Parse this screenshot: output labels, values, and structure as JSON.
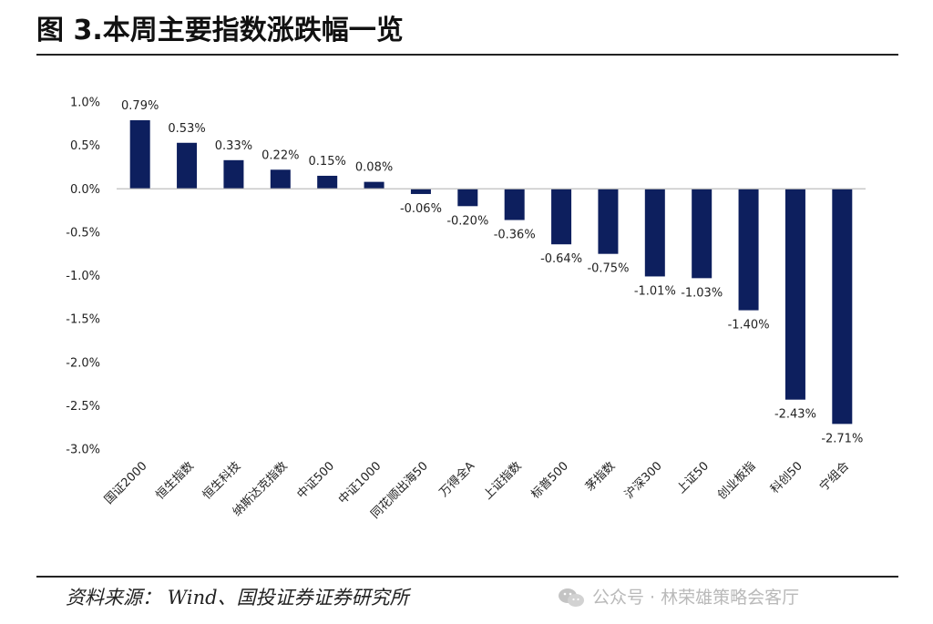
{
  "header": {
    "title": "图 3.本周主要指数涨跌幅一览"
  },
  "footer": {
    "source": "资料来源： Wind、国投证券证券研究所",
    "watermark": "公众号 · 林荣雄策略会客厅",
    "watermark_icon": "wechat-icon"
  },
  "chart_data": {
    "type": "bar",
    "categories": [
      "国证2000",
      "恒生指数",
      "恒生科技",
      "纳斯达克指数",
      "中证500",
      "中证1000",
      "同花顺出海50",
      "万得全A",
      "上证指数",
      "标普500",
      "茅指数",
      "沪深300",
      "上证50",
      "创业板指",
      "科创50",
      "宁组合"
    ],
    "values": [
      0.79,
      0.53,
      0.33,
      0.22,
      0.15,
      0.08,
      -0.06,
      -0.2,
      -0.36,
      -0.64,
      -0.75,
      -1.01,
      -1.03,
      -1.4,
      -2.43,
      -2.71
    ],
    "data_labels": [
      "0.79%",
      "0.53%",
      "0.33%",
      "0.22%",
      "0.15%",
      "0.08%",
      "-0.06%",
      "-0.20%",
      "-0.36%",
      "-0.64%",
      "-0.75%",
      "-1.01%",
      "-1.03%",
      "-1.40%",
      "-2.43%",
      "-2.71%"
    ],
    "yticks": [
      1.0,
      0.5,
      0.0,
      -0.5,
      -1.0,
      -1.5,
      -2.0,
      -2.5,
      -3.0
    ],
    "ytick_labels": [
      "1.0%",
      "0.5%",
      "0.0%",
      "-0.5%",
      "-1.0%",
      "-1.5%",
      "-2.0%",
      "-2.5%",
      "-3.0%"
    ],
    "ylim": [
      -3.0,
      1.0
    ],
    "bar_color": "#0d1f5e",
    "grid": false,
    "legend": "none",
    "title": "",
    "xlabel": "",
    "ylabel": ""
  }
}
